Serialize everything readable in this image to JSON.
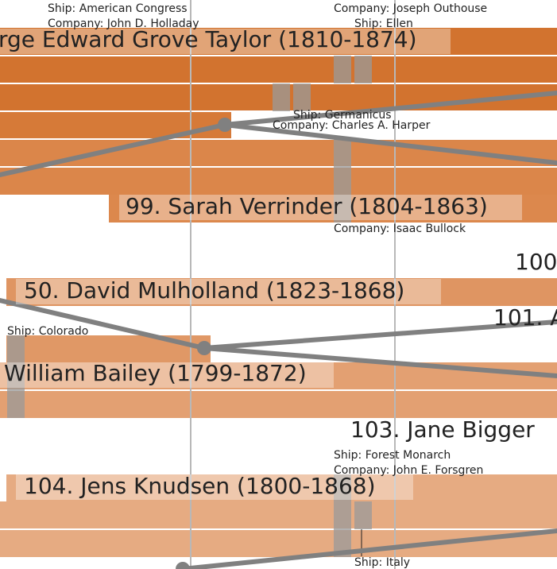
{
  "people": [
    {
      "name": "rge Edward Grove Taylor (1810-1874)"
    },
    {
      "name": "99. Sarah Verrinder (1804-1863)"
    },
    {
      "name": "100"
    },
    {
      "name": "50. David Mulholland (1823-1868)"
    },
    {
      "name": "101. A"
    },
    {
      "name": "William Bailey (1799-1872)"
    },
    {
      "name": "103. Jane Bigger"
    },
    {
      "name": "104. Jens Knudsen (1800-1868)"
    }
  ],
  "voyages": [
    {
      "ship": "Ship: American Congress",
      "company": "Company: John D. Holladay"
    },
    {
      "company": "Company: Joseph Outhouse",
      "ship": "Ship: Ellen"
    },
    {
      "ship": "Ship: Germanicus",
      "company": "Company: Charles A. Harper"
    },
    {
      "company": "Company: Isaac Bullock"
    },
    {
      "ship": "Ship: Colorado"
    },
    {
      "ship": "Ship: Forest Monarch",
      "company": "Company: John E. Forsgren"
    },
    {
      "ship": "Ship: Italy"
    }
  ]
}
